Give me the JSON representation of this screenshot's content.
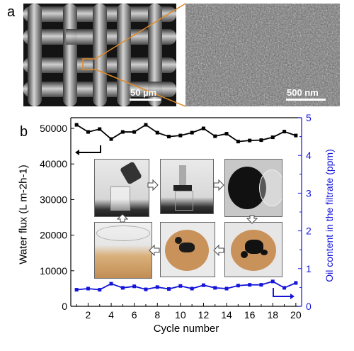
{
  "panels": {
    "a": {
      "label": "a",
      "left_scale": "50 µm",
      "right_scale": "500 nm"
    },
    "b": {
      "label": "b"
    }
  },
  "colors": {
    "flux": "#000000",
    "oil": "#1414d8",
    "callout": "#e08a28"
  },
  "chart_data": {
    "type": "line",
    "xlabel": "Cycle number",
    "ylabel_left": "Water flux (L m-2h-1)",
    "ylabel_right": "Oil content in the filtrate (ppm)",
    "xlim": [
      0.5,
      20.5
    ],
    "ylim_left": [
      0,
      53000
    ],
    "ylim_right": [
      0,
      5
    ],
    "x_ticks": [
      2,
      4,
      6,
      8,
      10,
      12,
      14,
      16,
      18,
      20
    ],
    "y_left_ticks": [
      0,
      10000,
      20000,
      30000,
      40000,
      50000
    ],
    "y_right_ticks": [
      0,
      1,
      2,
      3,
      4,
      5
    ],
    "series": [
      {
        "axis": "left",
        "color": "#000000",
        "x": [
          1,
          2,
          3,
          4,
          5,
          6,
          7,
          8,
          9,
          10,
          11,
          12,
          13,
          14,
          15,
          16,
          17,
          18,
          19,
          20
        ],
        "values": [
          51000,
          49000,
          49800,
          47000,
          49000,
          49000,
          51000,
          48800,
          47700,
          48000,
          48800,
          50000,
          47800,
          48500,
          46300,
          46600,
          46700,
          47500,
          49100,
          48000
        ]
      },
      {
        "axis": "right",
        "color": "#1414d8",
        "x": [
          1,
          2,
          3,
          4,
          5,
          6,
          7,
          8,
          9,
          10,
          11,
          12,
          13,
          14,
          15,
          16,
          17,
          18,
          19,
          20
        ],
        "values": [
          0.44,
          0.47,
          0.44,
          0.6,
          0.49,
          0.53,
          0.45,
          0.51,
          0.46,
          0.54,
          0.47,
          0.56,
          0.49,
          0.47,
          0.55,
          0.57,
          0.57,
          0.66,
          0.49,
          0.62
        ]
      }
    ]
  }
}
